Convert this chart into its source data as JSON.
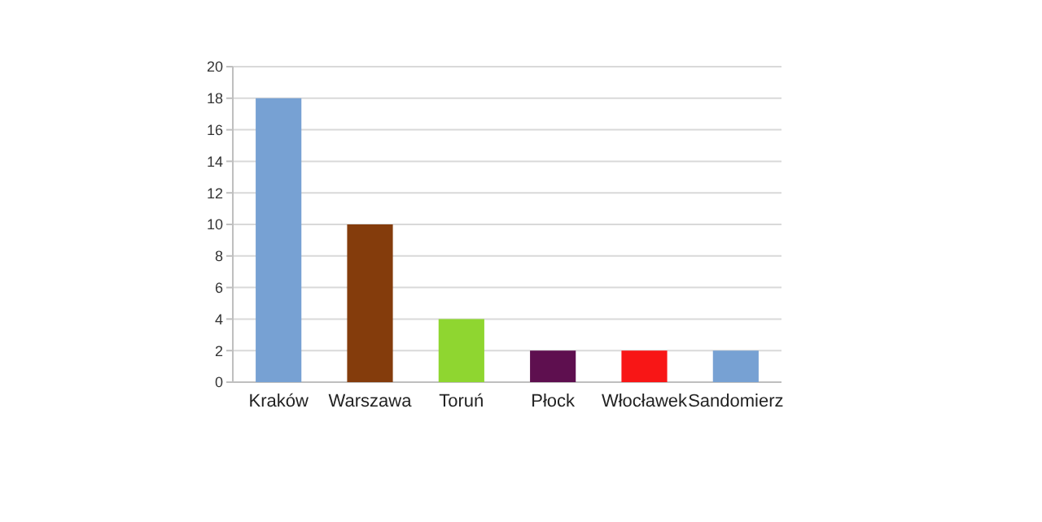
{
  "chart_data": {
    "type": "bar",
    "categories": [
      "Kraków",
      "Warszawa",
      "Toruń",
      "Płock",
      "Włocławek",
      "Sandomierz"
    ],
    "values": [
      18,
      10,
      4,
      2,
      2,
      2
    ],
    "colors": [
      "#77a1d3",
      "#843c0c",
      "#8fd630",
      "#5e0f4f",
      "#f81616",
      "#77a1d3"
    ],
    "ylim": [
      0,
      20
    ],
    "yticks": [
      0,
      2,
      4,
      6,
      8,
      10,
      12,
      14,
      16,
      18,
      20
    ],
    "grid": "y"
  }
}
